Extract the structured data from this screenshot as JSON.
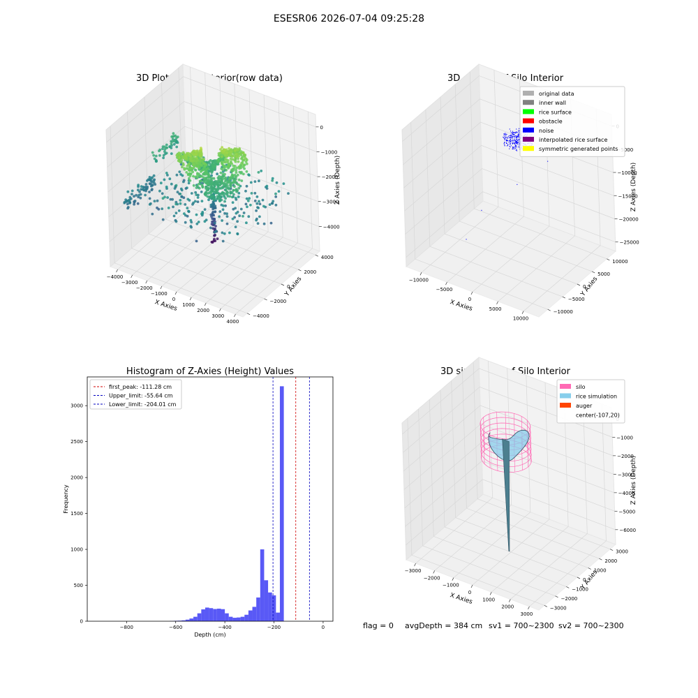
{
  "suptitle": "ESESR06 2026-07-04 09:25:28",
  "colors": {
    "hist_bar": "#5050f5",
    "first_peak_line": "#d00000",
    "limit_line": "#0000c0",
    "pane": "#f2f2f2",
    "grid": "#d7d7d7"
  },
  "chart_data": [
    {
      "type": "scatter3d",
      "title": "3D Plot of Silo Interior(row data)",
      "xlabel": "X Axies",
      "ylabel": "Y Axies",
      "zlabel": "Z Axies (Depth)",
      "xlim": [
        -4500,
        4500
      ],
      "ylim": [
        -4500,
        4500
      ],
      "zlim": [
        -5000,
        500
      ],
      "xticks": [
        -4000,
        -3000,
        -2000,
        -1000,
        0,
        1000,
        2000,
        3000,
        4000
      ],
      "yticks": [
        -4000,
        -2000,
        0,
        2000,
        4000
      ],
      "zticks": [
        0,
        -1000,
        -2000,
        -3000,
        -4000
      ],
      "colormap": "viridis",
      "points": {
        "rice_surface": {
          "count": 900,
          "x_range": [
            -1500,
            1500
          ],
          "y_range": [
            -1500,
            1500
          ],
          "z_center": -1100
        },
        "wall_left": {
          "count": 120,
          "x_range": [
            -4200,
            -3800
          ],
          "y_range": [
            -3500,
            3000
          ],
          "z_center": -2700
        },
        "scatter_mid": {
          "count": 260,
          "x_range": [
            -3500,
            3500
          ],
          "y_range": [
            -3500,
            3500
          ],
          "z_center": -2500
        },
        "auger_column": {
          "count": 70,
          "x": 0,
          "y": 0,
          "z_range": [
            -4300,
            -2400
          ]
        }
      }
    },
    {
      "type": "scatter3d",
      "title": "3D classify of Silo Interior",
      "xlabel": "X Axies",
      "ylabel": "Y Axies",
      "zlabel": "Z Axies (Depth)",
      "xlim": [
        -13000,
        13000
      ],
      "ylim": [
        -13000,
        13000
      ],
      "zlim": [
        -27000,
        2500
      ],
      "xticks": [
        -10000,
        -5000,
        0,
        5000,
        10000
      ],
      "yticks": [
        -10000,
        -5000,
        0,
        5000,
        10000
      ],
      "zticks": [
        0,
        -5000,
        -10000,
        -15000,
        -20000,
        -25000
      ],
      "legend_position": "top-right",
      "legend": [
        {
          "label": "original data",
          "color": "#b0b0b0"
        },
        {
          "label": "inner wall",
          "color": "#808080"
        },
        {
          "label": "rice surface",
          "color": "#00ff00"
        },
        {
          "label": "obstacle",
          "color": "#ff0000"
        },
        {
          "label": "noise",
          "color": "#0000ff"
        },
        {
          "label": "interpolated rice surface",
          "color": "#800080"
        },
        {
          "label": "symmetric generated points",
          "color": "#ffff00"
        }
      ],
      "points": {
        "noise_cluster": {
          "count": 380,
          "color": "#0000ff",
          "x_range": [
            -2800,
            2800
          ],
          "y_range": [
            -2800,
            2800
          ],
          "z_range": [
            -2500,
            0
          ]
        },
        "noise_outliers": {
          "count": 5,
          "color": "#0000ff"
        }
      }
    },
    {
      "type": "histogram",
      "title": "Histogram of Z-Axies (Height) Values",
      "xlabel": "Depth (cm)",
      "ylabel": "Frequency",
      "xlim": [
        -960,
        40
      ],
      "ylim": [
        0,
        3400
      ],
      "xticks": [
        -800,
        -600,
        -400,
        -200,
        0
      ],
      "yticks": [
        0,
        500,
        1000,
        1500,
        2000,
        2500,
        3000
      ],
      "bin_width": 16,
      "bins_start": -624,
      "counts": [
        4,
        6,
        8,
        12,
        22,
        38,
        62,
        110,
        165,
        190,
        182,
        170,
        175,
        168,
        110,
        62,
        48,
        52,
        62,
        90,
        150,
        200,
        330,
        1000,
        570,
        400,
        360,
        120,
        3270
      ],
      "lines": [
        {
          "label": "first_peak: -111.28 cm",
          "value": -111.28,
          "color": "#d00000",
          "style": "dashed"
        },
        {
          "label": "Upper_limit: -55.64 cm",
          "value": -55.64,
          "color": "#0000c0",
          "style": "dashed"
        },
        {
          "label": "Lower_limit: -204.01 cm",
          "value": -204.01,
          "color": "#0000c0",
          "style": "dashed"
        }
      ],
      "legend_position": "top-left"
    },
    {
      "type": "surface3d",
      "title": "3D simulation of Silo Interior",
      "xlabel": "X Axies",
      "ylabel": "Y Axies",
      "zlabel": "Z Axies (Depth)",
      "xlim": [
        -3500,
        3500
      ],
      "ylim": [
        -3500,
        3500
      ],
      "zlim": [
        -6800,
        600
      ],
      "xticks": [
        -3000,
        -2000,
        -1000,
        0,
        1000,
        2000,
        3000
      ],
      "yticks": [
        -3000,
        -2000,
        -1000,
        0,
        1000,
        2000,
        3000
      ],
      "zticks": [
        0,
        -1000,
        -2000,
        -3000,
        -4000,
        -5000,
        -6000
      ],
      "legend_position": "top-right",
      "legend": [
        {
          "label": "silo",
          "color": "#ff69b4"
        },
        {
          "label": "rice simulation",
          "color": "#87ceeb"
        },
        {
          "label": "auger",
          "color": "#ff4500"
        },
        {
          "label": "center(-107,20)",
          "color": ""
        }
      ]
    }
  ],
  "status": {
    "flag": "flag = 0",
    "avg_depth": "avgDepth = 384 cm",
    "sv1": "sv1 = 700~2300",
    "sv2": "sv2 = 700~2300"
  }
}
